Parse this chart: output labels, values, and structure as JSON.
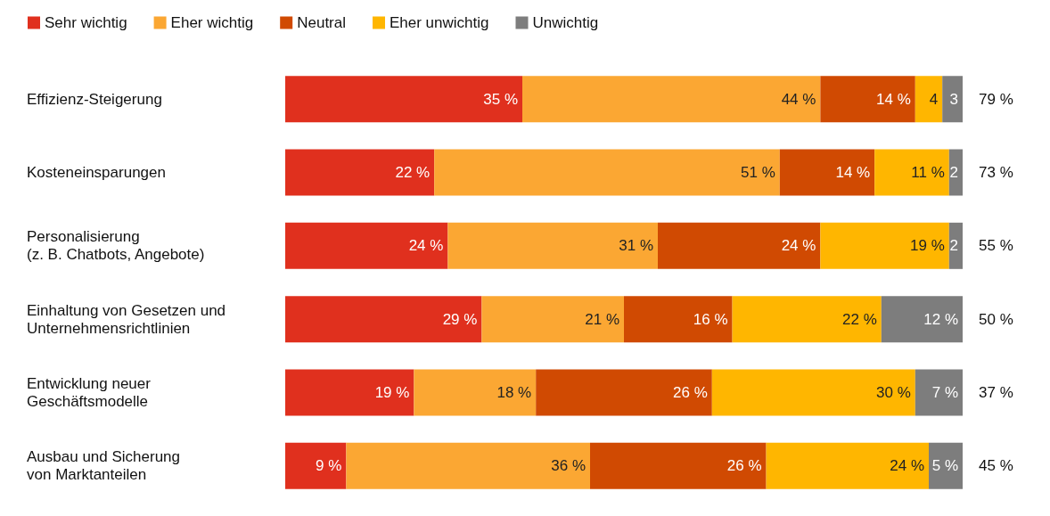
{
  "chart_data": {
    "type": "bar",
    "orientation": "horizontal",
    "stacked": true,
    "categories": [
      "Effizienz-Steigerung",
      "Kosteneinsparungen",
      "Personalisierung\n(z. B. Chatbots, Angebote)",
      "Einhaltung von Gesetzen und\nUnternehmensrichtlinien",
      "Entwicklung neuer\nGeschäftsmodelle",
      "Ausbau und Sicherung\nvon Marktanteilen"
    ],
    "series": [
      {
        "name": "Sehr wichtig",
        "color": "#e0301e",
        "values": [
          35,
          22,
          24,
          29,
          19,
          9
        ],
        "value_labels": [
          "35 %",
          "22 %",
          "24 %",
          "29 %",
          "19 %",
          "9 %"
        ]
      },
      {
        "name": "Eher wichtig",
        "color": "#fba733",
        "values": [
          44,
          51,
          31,
          21,
          18,
          36
        ],
        "value_labels": [
          "44 %",
          "51 %",
          "31 %",
          "21 %",
          "18 %",
          "36 %"
        ]
      },
      {
        "name": "Neutral",
        "color": "#d04a02",
        "values": [
          14,
          14,
          24,
          16,
          26,
          26
        ],
        "value_labels": [
          "14 %",
          "14 %",
          "24 %",
          "16 %",
          "26 %",
          "26 %"
        ]
      },
      {
        "name": "Eher unwichtig",
        "color": "#ffb600",
        "values": [
          4,
          11,
          19,
          22,
          30,
          24
        ],
        "value_labels": [
          "4",
          "11 %",
          "19 %",
          "22 %",
          "30 %",
          "24 %"
        ]
      },
      {
        "name": "Unwichtig",
        "color": "#7d7d7d",
        "values": [
          3,
          2,
          2,
          12,
          7,
          5
        ],
        "value_labels": [
          "3",
          "2",
          "2",
          "12 %",
          "7 %",
          "5 %"
        ]
      }
    ],
    "xlim": [
      0,
      100
    ],
    "tick_labels": "y",
    "legend": "top left",
    "grid": false,
    "annotations": [
      "79 %",
      "73 %",
      "55 %",
      "50 %",
      "37 %",
      "45 %"
    ]
  }
}
